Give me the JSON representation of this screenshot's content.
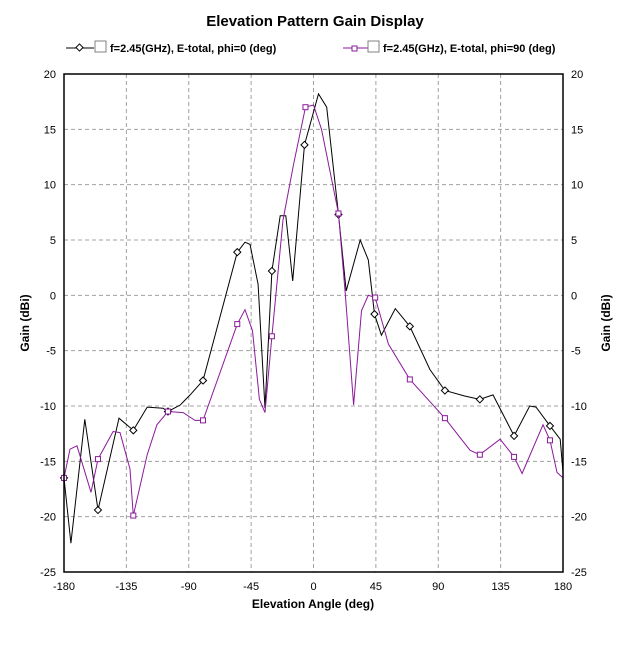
{
  "chart_data": {
    "type": "line",
    "title": "Elevation Pattern Gain Display",
    "xlabel": "Elevation Angle (deg)",
    "ylabel": "Gain (dBi)",
    "ylabel_right": "Gain (dBi)",
    "xlim": [
      -180,
      180
    ],
    "ylim": [
      -25,
      20
    ],
    "xticks": [
      -180,
      -135,
      -90,
      -45,
      0,
      45,
      90,
      135,
      180
    ],
    "yticks": [
      20,
      15,
      10,
      5,
      0,
      -5,
      -10,
      -15,
      -20,
      -25
    ],
    "grid": true,
    "legend_position": "top",
    "series": [
      {
        "name": "f=2.45(GHz), E-total, phi=0 (deg)",
        "color": "#000000",
        "marker": "diamond",
        "points": [
          [
            -180,
            -16.5,
            1
          ],
          [
            -175,
            -22.4,
            0
          ],
          [
            -165,
            -11.2,
            0
          ],
          [
            -155.5,
            -19.4,
            1
          ],
          [
            -140.3,
            -11.1,
            0
          ],
          [
            -130,
            -12.2,
            1
          ],
          [
            -120,
            -10.1,
            0
          ],
          [
            -108.6,
            -10.2,
            0
          ],
          [
            -105,
            -10.5,
            1
          ],
          [
            -96,
            -9.9,
            0
          ],
          [
            -89,
            -9,
            0
          ],
          [
            -79.7,
            -7.7,
            1
          ],
          [
            -55,
            3.9,
            1
          ],
          [
            -49.4,
            4.8,
            0
          ],
          [
            -45.8,
            4.6,
            0
          ],
          [
            -40,
            1,
            0
          ],
          [
            -35,
            -10.2,
            0
          ],
          [
            -30,
            2.2,
            1
          ],
          [
            -24,
            7.2,
            0
          ],
          [
            -20,
            7.2,
            0
          ],
          [
            -15,
            1.3,
            0
          ],
          [
            -6.5,
            13.6,
            1
          ],
          [
            3.6,
            18.2,
            0
          ],
          [
            9.5,
            17,
            0
          ],
          [
            18,
            7.3,
            1
          ],
          [
            23.6,
            0.4,
            0
          ],
          [
            33.7,
            5,
            0
          ],
          [
            39.5,
            3.2,
            0
          ],
          [
            44,
            -1.7,
            1
          ],
          [
            49,
            -3.6,
            0
          ],
          [
            59,
            -1.2,
            0
          ],
          [
            69.5,
            -2.8,
            1
          ],
          [
            84,
            -6.7,
            0
          ],
          [
            94.8,
            -8.6,
            1
          ],
          [
            109,
            -9.1,
            0
          ],
          [
            120,
            -9.4,
            1
          ],
          [
            129.5,
            -9,
            0
          ],
          [
            144.7,
            -12.7,
            1
          ],
          [
            156,
            -10,
            0
          ],
          [
            160.5,
            -10.1,
            0
          ],
          [
            170.6,
            -11.8,
            1
          ],
          [
            178,
            -13,
            0
          ],
          [
            180,
            -16,
            0
          ]
        ]
      },
      {
        "name": "f=2.45(GHz), E-total, phi=90 (deg)",
        "color": "#8B1A9B",
        "marker": "square",
        "points": [
          [
            -180,
            -16.5,
            1
          ],
          [
            -175.7,
            -13.9,
            0
          ],
          [
            -170.6,
            -13.6,
            0
          ],
          [
            -160.5,
            -17.8,
            0
          ],
          [
            -155.5,
            -14.8,
            1
          ],
          [
            -144.6,
            -12.3,
            0
          ],
          [
            -139.6,
            -12.4,
            0
          ],
          [
            -132.4,
            -15.7,
            0
          ],
          [
            -130,
            -19.9,
            1
          ],
          [
            -120,
            -14.4,
            0
          ],
          [
            -113,
            -11.7,
            0
          ],
          [
            -105,
            -10.5,
            1
          ],
          [
            -94,
            -10.6,
            0
          ],
          [
            -85.5,
            -11.3,
            0
          ],
          [
            -79.7,
            -11.3,
            1
          ],
          [
            -55,
            -2.6,
            1
          ],
          [
            -49.4,
            -1.3,
            0
          ],
          [
            -44,
            -3.2,
            0
          ],
          [
            -39,
            -9.4,
            0
          ],
          [
            -35,
            -10.6,
            0
          ],
          [
            -30,
            -3.7,
            1
          ],
          [
            -22,
            6.8,
            0
          ],
          [
            -14.4,
            11.8,
            0
          ],
          [
            -5.8,
            17,
            1
          ],
          [
            0,
            17.2,
            0
          ],
          [
            5.8,
            15,
            0
          ],
          [
            18,
            7.4,
            1
          ],
          [
            23,
            0,
            0
          ],
          [
            28.9,
            -9.9,
            0
          ],
          [
            34.6,
            -1.4,
            0
          ],
          [
            39.5,
            0,
            0
          ],
          [
            44.5,
            -0.2,
            1
          ],
          [
            54,
            -4.4,
            0
          ],
          [
            69.5,
            -7.6,
            1
          ],
          [
            94.8,
            -11.1,
            1
          ],
          [
            113,
            -14,
            0
          ],
          [
            120,
            -14.4,
            1
          ],
          [
            134.6,
            -13,
            0
          ],
          [
            144.7,
            -14.6,
            1
          ],
          [
            150.5,
            -16.1,
            0
          ],
          [
            165.6,
            -11.7,
            0
          ],
          [
            170.6,
            -13.1,
            1
          ],
          [
            175.7,
            -16,
            0
          ],
          [
            180,
            -16.5,
            0
          ]
        ]
      }
    ]
  }
}
